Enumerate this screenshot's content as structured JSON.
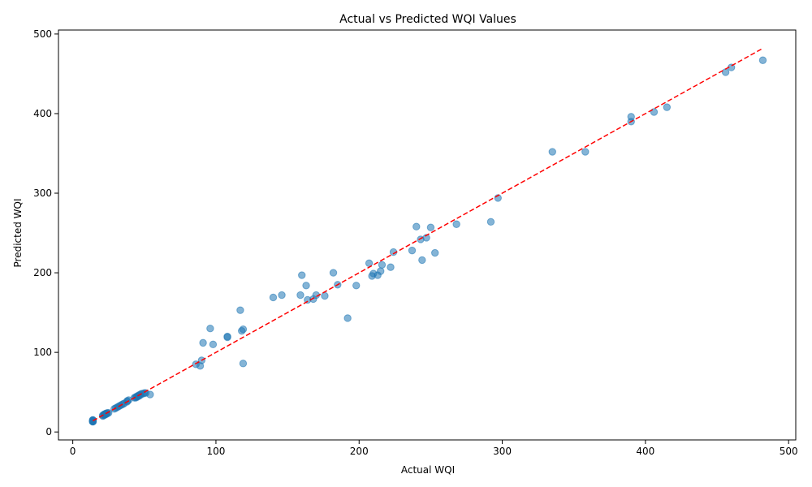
{
  "chart_data": {
    "type": "scatter",
    "title": "Actual vs Predicted WQI Values",
    "xlabel": "Actual WQI",
    "ylabel": "Predicted WQI",
    "xlim": [
      -10,
      505
    ],
    "ylim": [
      -10,
      505
    ],
    "xticks": [
      0,
      100,
      200,
      300,
      400,
      500
    ],
    "yticks": [
      0,
      100,
      200,
      300,
      400,
      500
    ],
    "grid": false,
    "colors": {
      "points": "#1f77b4",
      "reference_line": "#ff0000"
    },
    "reference_line": {
      "x": [
        14,
        482
      ],
      "y": [
        14,
        482
      ],
      "style": "dashed"
    },
    "series": [
      {
        "x": [
          14,
          14,
          14,
          14,
          14,
          14,
          14,
          14,
          21,
          21,
          22,
          22,
          22,
          23,
          23,
          23,
          24,
          24,
          25,
          29,
          30,
          31,
          32,
          33,
          34,
          35,
          36,
          38,
          38,
          39,
          43,
          44,
          44,
          45,
          45,
          46,
          46,
          47,
          47,
          48,
          49,
          50,
          51,
          54,
          86,
          89,
          90,
          91,
          96,
          98,
          108,
          108,
          118,
          119,
          119,
          117,
          140,
          146,
          159,
          160,
          163,
          164,
          168,
          170,
          176,
          182,
          185,
          192,
          198,
          207,
          209,
          210,
          213,
          215,
          216,
          222,
          224,
          237,
          240,
          243,
          244,
          247,
          250,
          253,
          268,
          292,
          297,
          335,
          358,
          390,
          390,
          406,
          415,
          456,
          460,
          482
        ],
        "y": [
          13,
          13,
          13,
          14,
          14,
          14,
          15,
          15,
          20,
          21,
          21,
          22,
          22,
          22,
          23,
          23,
          23,
          24,
          24,
          29,
          30,
          31,
          32,
          33,
          34,
          35,
          36,
          38,
          39,
          40,
          43,
          43,
          44,
          44,
          45,
          45,
          46,
          46,
          47,
          48,
          48,
          49,
          49,
          47,
          85,
          83,
          90,
          112,
          130,
          110,
          119,
          120,
          127,
          129,
          86,
          153,
          169,
          172,
          172,
          197,
          184,
          166,
          167,
          172,
          171,
          200,
          185,
          143,
          184,
          212,
          196,
          199,
          197,
          202,
          210,
          207,
          226,
          228,
          258,
          242,
          216,
          244,
          257,
          225,
          261,
          264,
          294,
          352,
          352,
          390,
          396,
          402,
          408,
          452,
          458,
          467
        ]
      }
    ]
  }
}
